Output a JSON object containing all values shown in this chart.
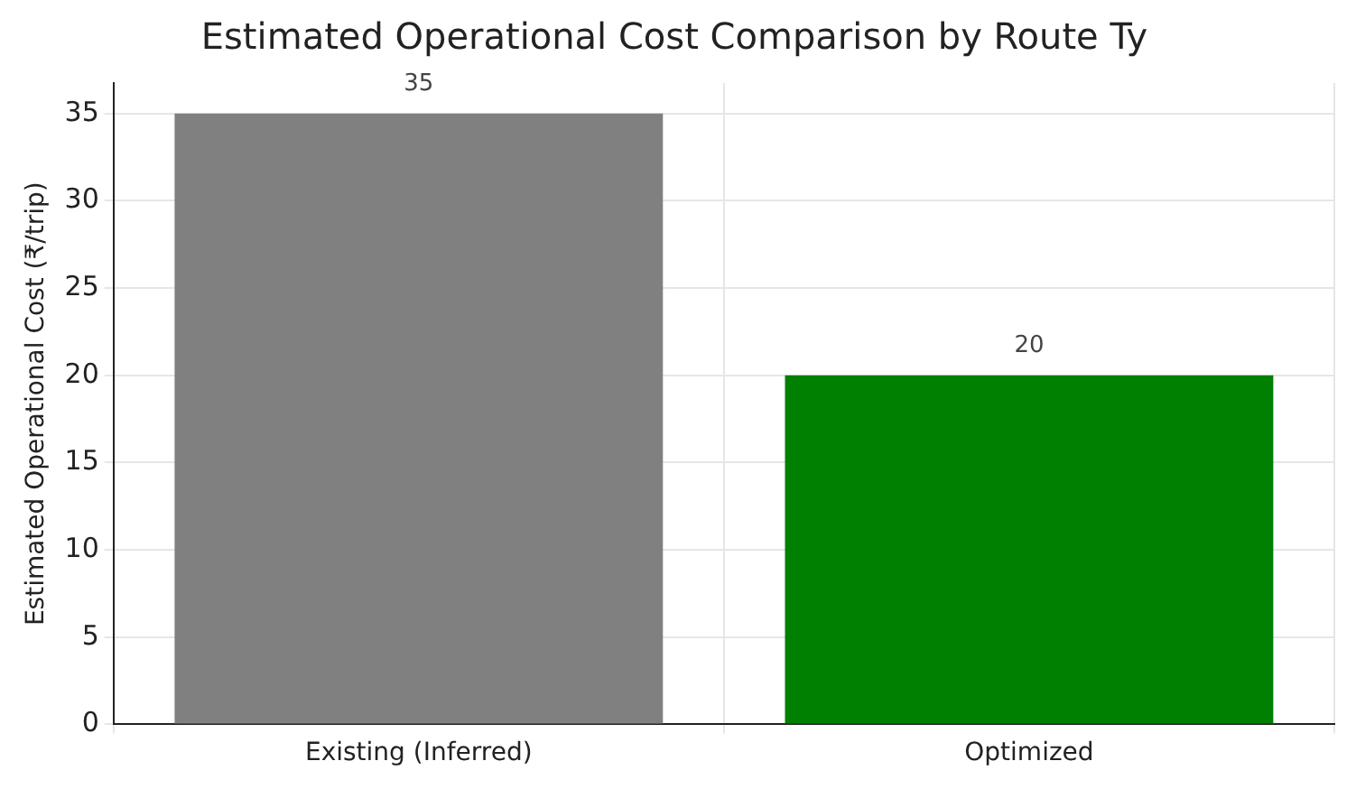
{
  "chart_data": {
    "type": "bar",
    "title": "Estimated Operational Cost Comparison by Route Ty",
    "ylabel": "Estimated Operational Cost (₹/trip)",
    "categories": [
      "Existing (Inferred)",
      "Optimized"
    ],
    "values": [
      35,
      20
    ],
    "colors": [
      "#808080",
      "#008000"
    ],
    "ylim": [
      0,
      36.75
    ],
    "yticks": [
      0,
      5,
      10,
      15,
      20,
      25,
      30,
      35
    ],
    "grid": true,
    "data_labels": true
  }
}
